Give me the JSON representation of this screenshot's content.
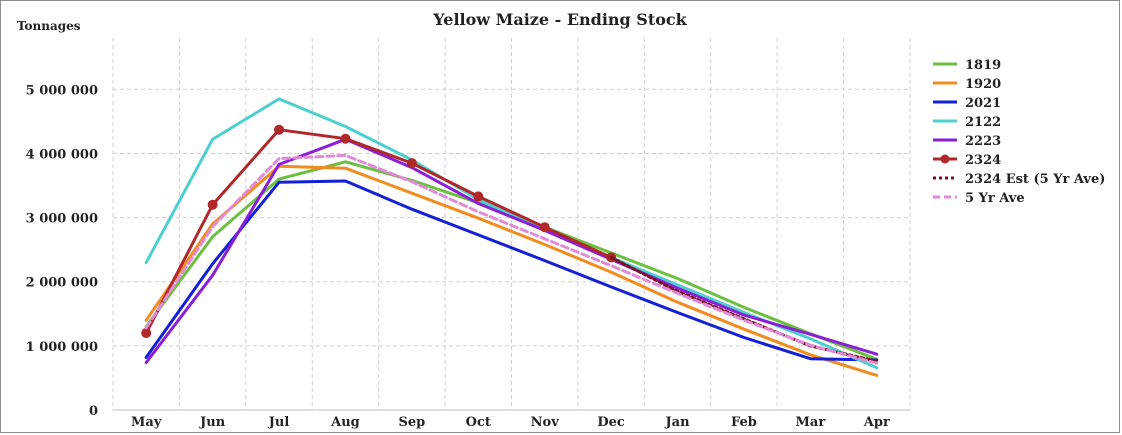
{
  "chart_data": {
    "type": "line",
    "title": "Yellow Maize - Ending Stock",
    "ylabel": "Tonnages",
    "xlabel": "",
    "categories": [
      "May",
      "Jun",
      "Jul",
      "Aug",
      "Sep",
      "Oct",
      "Nov",
      "Dec",
      "Jan",
      "Feb",
      "Mar",
      "Apr"
    ],
    "ylim": [
      0,
      5800000
    ],
    "yticks": [
      0,
      1000000,
      2000000,
      3000000,
      4000000,
      5000000
    ],
    "ytick_labels": [
      "0",
      "1 000 000",
      "2 000 000",
      "3 000 000",
      "4 000 000",
      "5 000 000"
    ],
    "grid": true,
    "legend_position": "right",
    "series": [
      {
        "name": "1819",
        "color": "#6cbf3f",
        "style": "solid",
        "marker": false,
        "values": [
          1300000,
          2700000,
          3600000,
          3870000,
          3580000,
          3230000,
          2850000,
          2450000,
          2050000,
          1600000,
          1190000,
          790000
        ]
      },
      {
        "name": "1920",
        "color": "#f28c1e",
        "style": "solid",
        "marker": false,
        "values": [
          1400000,
          2900000,
          3800000,
          3770000,
          3380000,
          2990000,
          2580000,
          2150000,
          1680000,
          1260000,
          860000,
          540000
        ]
      },
      {
        "name": "2021",
        "color": "#1420d6",
        "style": "solid",
        "marker": false,
        "values": [
          820000,
          2280000,
          3550000,
          3570000,
          3130000,
          2730000,
          2330000,
          1920000,
          1520000,
          1130000,
          800000,
          780000
        ]
      },
      {
        "name": "2122",
        "color": "#4dcfcf",
        "style": "solid",
        "marker": false,
        "values": [
          2300000,
          4220000,
          4850000,
          4420000,
          3900000,
          3280000,
          2800000,
          2380000,
          1950000,
          1520000,
          1110000,
          660000
        ]
      },
      {
        "name": "2223",
        "color": "#8a1fd6",
        "style": "solid",
        "marker": false,
        "values": [
          740000,
          2100000,
          3830000,
          4220000,
          3780000,
          3220000,
          2800000,
          2350000,
          1900000,
          1480000,
          1180000,
          870000
        ]
      },
      {
        "name": "2324",
        "color": "#b0282a",
        "style": "solid",
        "marker": true,
        "values": [
          1200000,
          3200000,
          4370000,
          4230000,
          3850000,
          3330000,
          2850000,
          2380000,
          null,
          null,
          null,
          null
        ]
      },
      {
        "name": "2324 Est (5 Yr Ave)",
        "color": "#7a1020",
        "style": "dotted",
        "marker": false,
        "values": [
          null,
          null,
          null,
          null,
          null,
          null,
          null,
          2380000,
          1850000,
          1420000,
          1000000,
          760000
        ]
      },
      {
        "name": "5 Yr Ave",
        "color": "#e08ad8",
        "style": "dashed",
        "marker": false,
        "values": [
          1280000,
          2860000,
          3920000,
          3970000,
          3560000,
          3090000,
          2670000,
          2250000,
          1820000,
          1400000,
          1010000,
          730000
        ]
      }
    ]
  }
}
